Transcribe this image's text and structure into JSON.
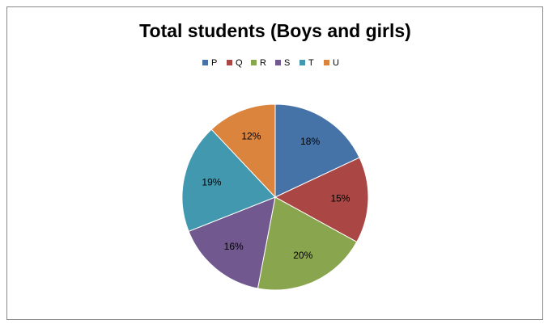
{
  "chart_data": {
    "type": "pie",
    "title": "Total students (Boys and girls)",
    "categories": [
      "P",
      "Q",
      "R",
      "S",
      "T",
      "U"
    ],
    "values": [
      18,
      15,
      20,
      16,
      19,
      12
    ],
    "value_labels": [
      "18%",
      "15%",
      "20%",
      "16%",
      "19%",
      "12%"
    ],
    "colors": [
      "#4572a7",
      "#aa4643",
      "#89a54e",
      "#71588f",
      "#4198af",
      "#db843d"
    ],
    "legend": "top"
  }
}
